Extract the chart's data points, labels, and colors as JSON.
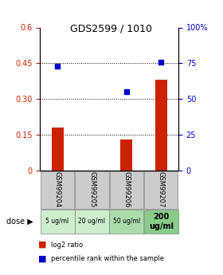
{
  "title": "GDS2599 / 1010",
  "samples": [
    "GSM99204",
    "GSM99205",
    "GSM99206",
    "GSM99207"
  ],
  "doses": [
    "5 ug/ml",
    "20 ug/ml",
    "50 ug/ml",
    "200\nug/ml"
  ],
  "log2_ratio": [
    0.18,
    0.0,
    0.13,
    0.38
  ],
  "percentile_rank": [
    73,
    null,
    55,
    76
  ],
  "left_ylim": [
    0,
    0.6
  ],
  "right_ylim": [
    0,
    100
  ],
  "left_yticks": [
    0,
    0.15,
    0.3,
    0.45,
    0.6
  ],
  "right_yticks": [
    0,
    25,
    50,
    75,
    100
  ],
  "left_yticklabels": [
    "0",
    "0.15",
    "0.30",
    "0.45",
    "0.6"
  ],
  "right_yticklabels": [
    "0",
    "25",
    "50",
    "75",
    "100%"
  ],
  "bar_color": "#cc2200",
  "dot_color": "#0000cc",
  "grid_color": "black",
  "grid_lw": 0.7,
  "bar_width": 0.35,
  "sample_box_color": "#cccccc",
  "dose_box_colors": [
    "#cceecc",
    "#cceecc",
    "#aaddaa",
    "#88cc88"
  ],
  "legend_items": [
    "log2 ratio",
    "percentile rank within the sample"
  ]
}
